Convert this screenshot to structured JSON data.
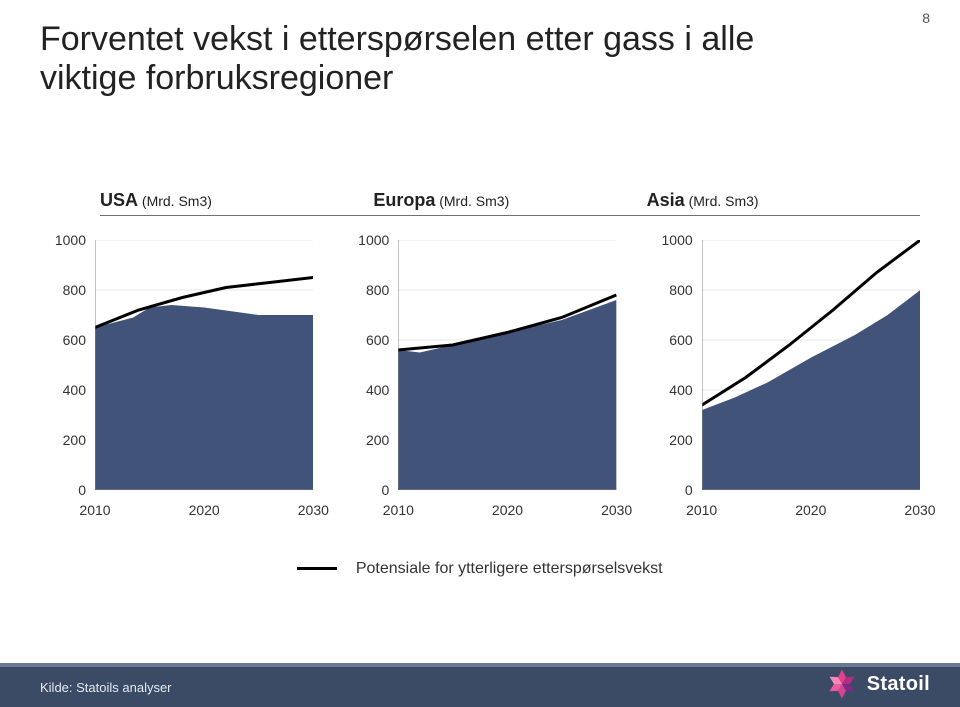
{
  "page_number": "8",
  "title": "Forventet vekst i etterspørselen etter gass i alle viktige forbruksregioner",
  "regions": [
    {
      "name": "USA",
      "unit": "(Mrd. Sm3)"
    },
    {
      "name": "Europa",
      "unit": "(Mrd. Sm3)"
    },
    {
      "name": "Asia",
      "unit": "(Mrd. Sm3)"
    }
  ],
  "chart_common": {
    "ylim": [
      0,
      1000
    ],
    "ytick_step": 200,
    "xlim": [
      2010,
      2030
    ],
    "xticks": [
      2010,
      2020,
      2030
    ],
    "y_label_fontsize": 14,
    "x_label_fontsize": 14,
    "area_color": "#42537a",
    "line_color": "#000000",
    "line_width": 3,
    "gridline_color": "#cfcfcf",
    "axis_color": "#808080",
    "tick_color": "#808080",
    "background_color": "#ffffff",
    "type": "area+line"
  },
  "charts": [
    {
      "region": "USA",
      "area_points": [
        [
          2010,
          650
        ],
        [
          2013.5,
          690
        ],
        [
          2015,
          730
        ],
        [
          2017,
          740
        ],
        [
          2020,
          730
        ],
        [
          2025,
          700
        ],
        [
          2030,
          700
        ]
      ],
      "line_points": [
        [
          2010,
          650
        ],
        [
          2014,
          720
        ],
        [
          2018,
          770
        ],
        [
          2022,
          810
        ],
        [
          2026,
          830
        ],
        [
          2030,
          850
        ]
      ]
    },
    {
      "region": "Europa",
      "area_points": [
        [
          2010,
          560
        ],
        [
          2012,
          550
        ],
        [
          2015,
          580
        ],
        [
          2020,
          630
        ],
        [
          2025,
          680
        ],
        [
          2030,
          760
        ]
      ],
      "line_points": [
        [
          2010,
          560
        ],
        [
          2015,
          580
        ],
        [
          2020,
          630
        ],
        [
          2025,
          690
        ],
        [
          2030,
          780
        ]
      ]
    },
    {
      "region": "Asia",
      "area_points": [
        [
          2010,
          320
        ],
        [
          2013,
          370
        ],
        [
          2016,
          430
        ],
        [
          2020,
          530
        ],
        [
          2024,
          620
        ],
        [
          2027,
          700
        ],
        [
          2030,
          800
        ]
      ],
      "line_points": [
        [
          2010,
          340
        ],
        [
          2014,
          450
        ],
        [
          2018,
          580
        ],
        [
          2022,
          720
        ],
        [
          2026,
          870
        ],
        [
          2030,
          1000
        ]
      ]
    }
  ],
  "legend": {
    "label": "Potensiale for ytterligere etterspørselsvekst"
  },
  "footer": {
    "source": "Kilde: Statoils analyser",
    "logo_text": "Statoil",
    "band_color": "#3b4b66",
    "band_top_color": "#6a7a96",
    "logo_star_colors": [
      "#e83e8c",
      "#b23083",
      "#7c2a85",
      "#d6458f",
      "#ef5aa0",
      "#f78ab8"
    ]
  }
}
